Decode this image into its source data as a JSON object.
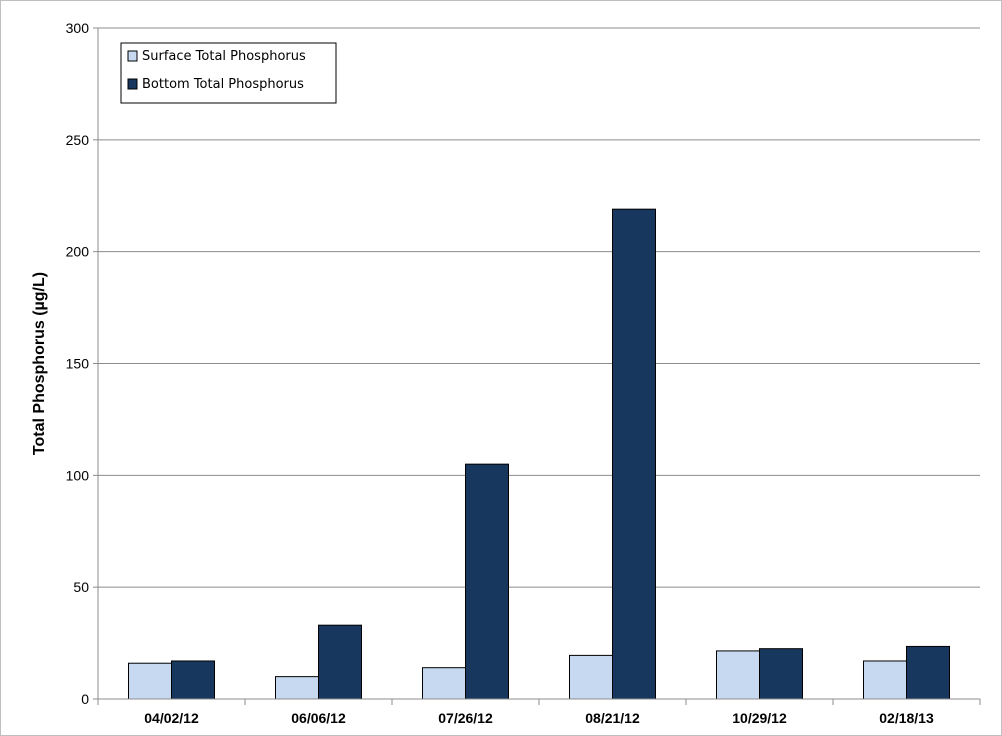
{
  "chart_data": {
    "type": "bar",
    "title": "",
    "xlabel": "",
    "ylabel": "Total Phosphorus (µg/L)",
    "ylim": [
      0,
      300
    ],
    "yticks": [
      0,
      50,
      100,
      150,
      200,
      250,
      300
    ],
    "grid": true,
    "legend_position": "top-left",
    "categories": [
      "04/02/12",
      "06/06/12",
      "07/26/12",
      "08/21/12",
      "10/29/12",
      "02/18/13"
    ],
    "series": [
      {
        "name": "Surface Total Phosphorus",
        "color": "#c6d9f1",
        "values": [
          16,
          10,
          14,
          19.5,
          21.5,
          17
        ]
      },
      {
        "name": "Bottom Total Phosphorus",
        "color": "#17375e",
        "values": [
          17,
          33,
          105,
          219,
          22.5,
          23.5
        ]
      }
    ]
  }
}
